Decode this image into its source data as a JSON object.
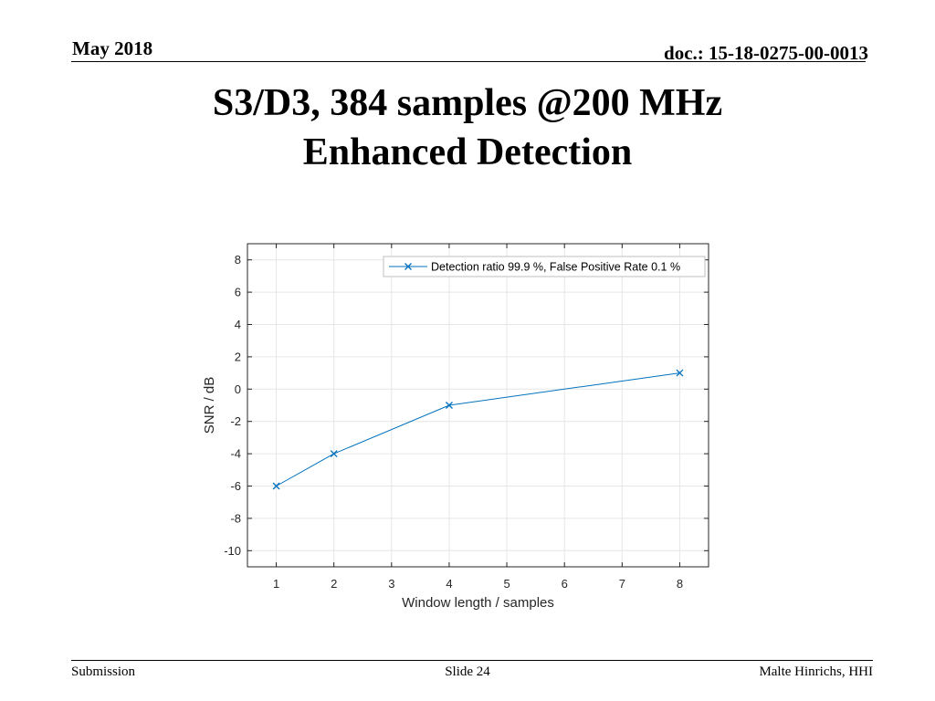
{
  "header": {
    "date": "May 2018",
    "doc_id": "doc.: 15-18-0275-00-0013"
  },
  "title": {
    "line1": "S3/D3, 384 samples @200 MHz",
    "line2": "Enhanced Detection"
  },
  "footer": {
    "left": "Submission",
    "center": "Slide 24",
    "right": "Malte Hinrichs, HHI"
  },
  "colors": {
    "series": "#0072BD",
    "grid": "#e6e6e6",
    "axis": "#262626"
  },
  "chart_data": {
    "type": "line",
    "xlabel": "Window length / samples",
    "ylabel": "SNR / dB",
    "categories": [
      "1",
      "2",
      "3",
      "4",
      "5",
      "6",
      "7",
      "8"
    ],
    "ylim": [
      -11,
      9
    ],
    "yticks": [
      -10,
      -8,
      -6,
      -4,
      -2,
      0,
      2,
      4,
      6,
      8
    ],
    "grid": true,
    "legend_position": "top-right",
    "series": [
      {
        "name": "Detection ratio 99.9 %, False Positive Rate 0.1 %",
        "marker": "x",
        "x": [
          "1",
          "2",
          "4",
          "8"
        ],
        "y": [
          -6,
          -4,
          -1,
          1
        ]
      }
    ]
  }
}
